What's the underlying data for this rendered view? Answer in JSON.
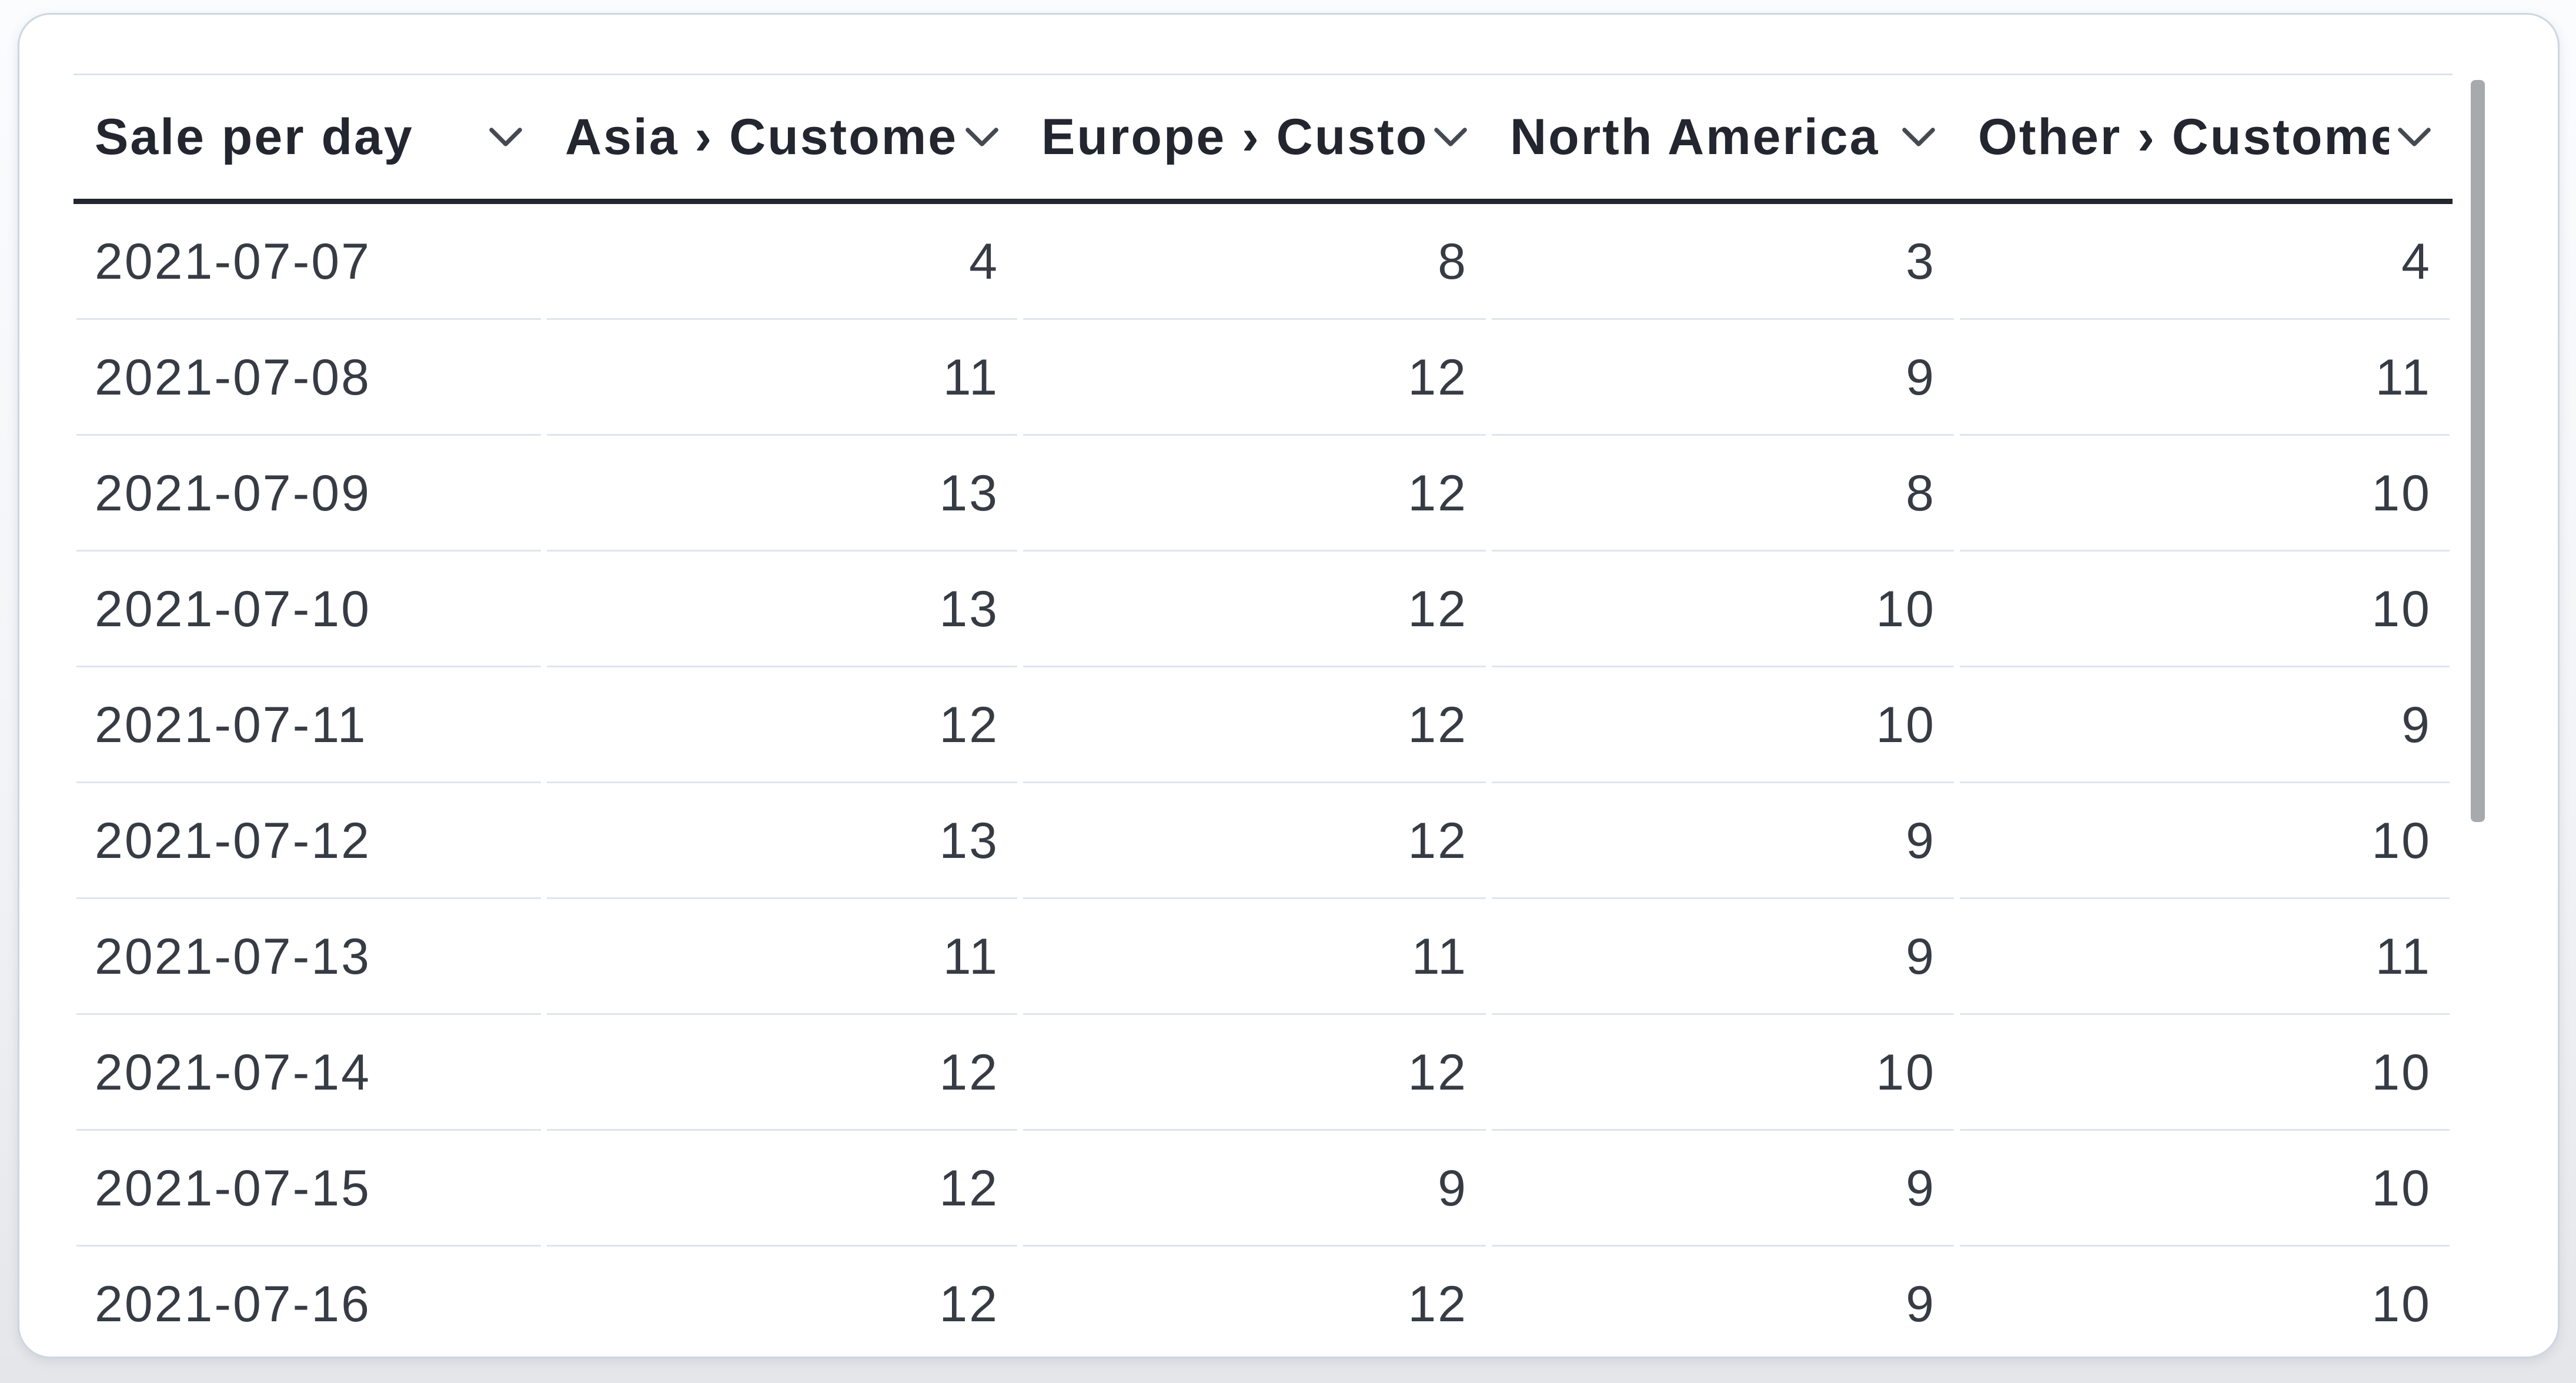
{
  "card": {
    "type": "table-visualization"
  },
  "table": {
    "columns": [
      {
        "label": "Sale per day",
        "align": "left",
        "sort_icon": "chevron-down-icon"
      },
      {
        "label": "Asia › Customers",
        "align": "right",
        "sort_icon": "chevron-down-icon"
      },
      {
        "label": "Europe › Customers",
        "align": "right",
        "sort_icon": "chevron-down-icon"
      },
      {
        "label": "North America › Customers",
        "align": "right",
        "sort_icon": "chevron-down-icon"
      },
      {
        "label": "Other › Customers",
        "align": "right",
        "sort_icon": "chevron-down-icon"
      }
    ],
    "rows": [
      [
        "2021-07-07",
        "4",
        "8",
        "3",
        "4"
      ],
      [
        "2021-07-08",
        "11",
        "12",
        "9",
        "11"
      ],
      [
        "2021-07-09",
        "13",
        "12",
        "8",
        "10"
      ],
      [
        "2021-07-10",
        "13",
        "12",
        "10",
        "10"
      ],
      [
        "2021-07-11",
        "12",
        "12",
        "10",
        "9"
      ],
      [
        "2021-07-12",
        "13",
        "12",
        "9",
        "10"
      ],
      [
        "2021-07-13",
        "11",
        "11",
        "9",
        "11"
      ],
      [
        "2021-07-14",
        "12",
        "12",
        "10",
        "10"
      ],
      [
        "2021-07-15",
        "12",
        "9",
        "9",
        "10"
      ],
      [
        "2021-07-16",
        "12",
        "12",
        "9",
        "10"
      ]
    ]
  },
  "chart_data": {
    "type": "table",
    "title": "Sale per day",
    "categories": [
      "2021-07-07",
      "2021-07-08",
      "2021-07-09",
      "2021-07-10",
      "2021-07-11",
      "2021-07-12",
      "2021-07-13",
      "2021-07-14",
      "2021-07-15",
      "2021-07-16"
    ],
    "series": [
      {
        "name": "Asia › Customers",
        "values": [
          4,
          11,
          13,
          13,
          12,
          13,
          11,
          12,
          12,
          12
        ]
      },
      {
        "name": "Europe › Customers",
        "values": [
          8,
          12,
          12,
          12,
          12,
          12,
          11,
          12,
          9,
          12
        ]
      },
      {
        "name": "North America › Customers",
        "values": [
          3,
          9,
          8,
          10,
          10,
          9,
          9,
          10,
          9,
          9
        ]
      },
      {
        "name": "Other › Customers",
        "values": [
          4,
          11,
          10,
          10,
          9,
          10,
          11,
          10,
          10,
          10
        ]
      }
    ]
  },
  "scrollbar": {
    "orientation": "vertical",
    "thumb_color": "#a7a9ad"
  },
  "colors": {
    "card_background": "#ffffff",
    "card_border": "#cdd7e1",
    "header_text": "#23262f",
    "header_underline": "#23262f",
    "cell_text": "#363b44",
    "row_separator": "#dfe5ec",
    "chevron": "#454a52"
  }
}
